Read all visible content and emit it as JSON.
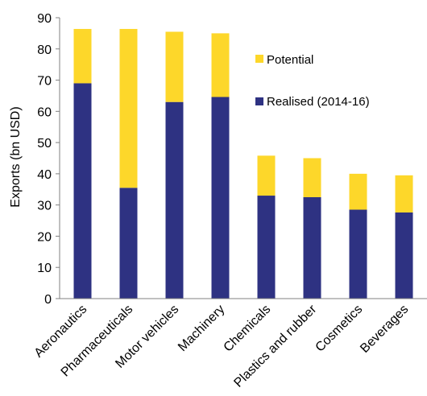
{
  "chart_data": {
    "type": "bar",
    "stacked": true,
    "ylabel": "Exports (bn USD)",
    "ylim": [
      0,
      90
    ],
    "yticks": [
      0,
      10,
      20,
      30,
      40,
      50,
      60,
      70,
      80,
      90
    ],
    "grid": false,
    "legend_position": "upper-right",
    "categories": [
      "Aeronautics",
      "Pharmaceuticals",
      "Motor vehicles",
      "Machinery",
      "Chemicals",
      "Plastics and rubber",
      "Cosmetics",
      "Beverages"
    ],
    "series": [
      {
        "name": "Realised (2014-16)",
        "color": "#2e3282",
        "values": [
          69.0,
          35.5,
          63.0,
          64.6,
          33.0,
          32.5,
          28.5,
          27.6
        ]
      },
      {
        "name": "Potential",
        "color": "#fdd72a",
        "values": [
          17.4,
          50.9,
          22.5,
          20.4,
          12.8,
          12.5,
          11.5,
          11.9
        ]
      }
    ]
  }
}
